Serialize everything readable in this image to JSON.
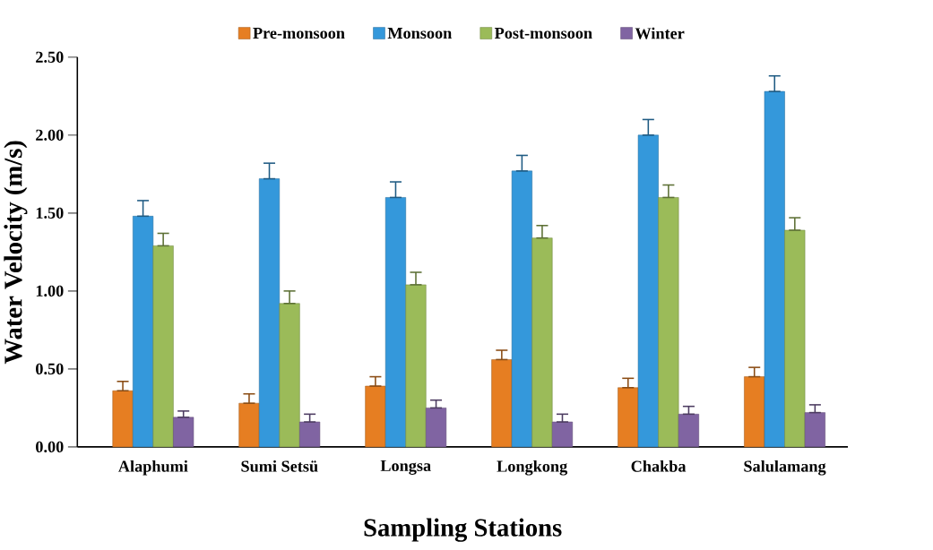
{
  "chart_data": {
    "type": "bar",
    "xlabel": "Sampling Stations",
    "ylabel": "Water Velocity (m/s)",
    "categories": [
      "Alaphumi",
      "Sumi Setsü",
      "Longsa",
      "Longkong",
      "Chakba",
      "Salulamang"
    ],
    "series": [
      {
        "name": "Pre-monsoon",
        "color": "#e67e22",
        "values": [
          0.36,
          0.28,
          0.39,
          0.56,
          0.38,
          0.45
        ],
        "errors": [
          [
            0.36,
            0.42
          ],
          [
            0.28,
            0.34
          ],
          [
            0.39,
            0.45
          ],
          [
            0.56,
            0.62
          ],
          [
            0.38,
            0.44
          ],
          [
            0.45,
            0.51
          ]
        ]
      },
      {
        "name": "Monsoon",
        "color": "#3498db",
        "values": [
          1.48,
          1.72,
          1.6,
          1.77,
          2.0,
          2.28
        ],
        "errors": [
          [
            1.48,
            1.58
          ],
          [
            1.72,
            1.82
          ],
          [
            1.6,
            1.7
          ],
          [
            1.77,
            1.87
          ],
          [
            2.0,
            2.1
          ],
          [
            2.28,
            2.38
          ]
        ]
      },
      {
        "name": "Post-monsoon",
        "color": "#9bbb59",
        "values": [
          1.29,
          0.92,
          1.04,
          1.34,
          1.6,
          1.39
        ],
        "errors": [
          [
            1.29,
            1.37
          ],
          [
            0.92,
            1.0
          ],
          [
            1.04,
            1.12
          ],
          [
            1.34,
            1.42
          ],
          [
            1.6,
            1.68
          ],
          [
            1.39,
            1.47
          ]
        ]
      },
      {
        "name": "Winter",
        "color": "#8064a2",
        "values": [
          0.19,
          0.16,
          0.25,
          0.16,
          0.21,
          0.22
        ],
        "errors": [
          [
            0.19,
            0.23
          ],
          [
            0.16,
            0.21
          ],
          [
            0.25,
            0.3
          ],
          [
            0.16,
            0.21
          ],
          [
            0.21,
            0.26
          ],
          [
            0.22,
            0.27
          ]
        ]
      }
    ],
    "ylim": [
      0,
      2.5
    ],
    "yticks": [
      {
        "value": 0,
        "label": "0.00"
      },
      {
        "value": 0.5,
        "label": "0.50"
      },
      {
        "value": 1,
        "label": "1.00"
      },
      {
        "value": 1.5,
        "label": "1.50"
      },
      {
        "value": 2,
        "label": "2.00"
      },
      {
        "value": 2.5,
        "label": "2.50"
      }
    ],
    "legend": "top",
    "grid": false
  }
}
